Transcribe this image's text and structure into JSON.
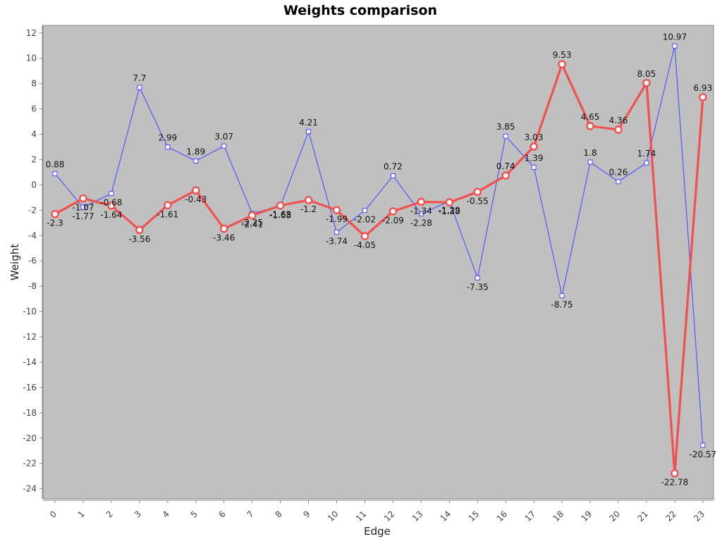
{
  "chart_data": {
    "type": "line",
    "title": "Weights comparison",
    "xlabel": "Edge",
    "ylabel": "Weight",
    "categories": [
      "0",
      "1",
      "2",
      "3",
      "4",
      "5",
      "6",
      "7",
      "8",
      "9",
      "10",
      "11",
      "12",
      "13",
      "14",
      "15",
      "16",
      "17",
      "18",
      "19",
      "20",
      "21",
      "22",
      "23"
    ],
    "ylim": [
      -24.8,
      12.6
    ],
    "yticks": [
      12,
      10,
      8,
      6,
      4,
      2,
      0,
      -2,
      -4,
      -6,
      -8,
      -10,
      -12,
      -14,
      -16,
      -18,
      -20,
      -22,
      -24
    ],
    "grid": false,
    "legend": "none",
    "background": "#c0c0c0",
    "series": [
      {
        "color": "#5555ff",
        "marker": "square",
        "values": [
          0.88,
          -1.77,
          -0.68,
          7.7,
          2.99,
          1.89,
          3.07,
          -2.25,
          -1.68,
          4.21,
          -3.74,
          -2.02,
          0.72,
          -2.28,
          -1.29,
          -7.35,
          3.85,
          1.39,
          -8.75,
          1.8,
          0.26,
          1.74,
          10.97,
          -20.57
        ],
        "labels": [
          "0.88",
          "-1.77",
          "-0.68",
          "7.7",
          "2.99",
          "1.89",
          "3.07",
          "-2.25",
          "-1.68",
          "4.21",
          "-3.74",
          "-2.02",
          "0.72",
          "-2.28",
          "-1.29",
          "-7.35",
          "3.85",
          "1.39",
          "-8.75",
          "1.8",
          "0.26",
          "1.74",
          "10.97",
          "-20.57"
        ]
      },
      {
        "color": "#f05050",
        "marker": "circle",
        "values": [
          -2.3,
          -1.07,
          -1.64,
          -3.56,
          -1.61,
          -0.43,
          -3.46,
          -2.41,
          -1.63,
          -1.2,
          -1.99,
          -4.05,
          -2.09,
          -1.34,
          -1.38,
          -0.55,
          0.74,
          3.03,
          9.53,
          4.65,
          4.36,
          8.05,
          -22.78,
          6.93
        ],
        "labels": [
          "-2.3",
          "-1.07",
          "-1.64",
          "-3.56",
          "-1.61",
          "-0.43",
          "-3.46",
          "-2.41",
          "-1.63",
          "-1.2",
          "-1.99",
          "-4.05",
          "-2.09",
          "-1.34",
          "-1.38",
          "-0.55",
          "0.74",
          "3.03",
          "9.53",
          "4.65",
          "4.36",
          "8.05",
          "-22.78",
          "6.93"
        ]
      }
    ]
  }
}
